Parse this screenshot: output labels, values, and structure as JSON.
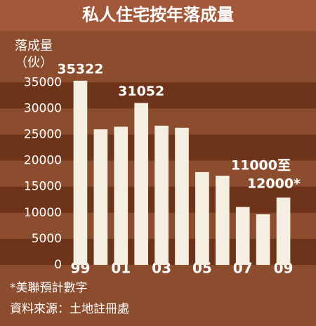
{
  "chart_data": {
    "type": "bar",
    "title": "私人住宅按年落成量",
    "y_label_lines": [
      "落成量",
      "（伙）"
    ],
    "categories": [
      "99",
      null,
      "01",
      null,
      "03",
      null,
      "05",
      null,
      "07",
      null,
      "09"
    ],
    "values": [
      35322,
      26000,
      26500,
      31052,
      26700,
      26300,
      17800,
      17100,
      11100,
      9700,
      12900
    ],
    "labeled_points": [
      0,
      3
    ],
    "annotations": [
      "11000至",
      "12000*"
    ],
    "footnotes": [
      "*美聯預計數字",
      "資料來源：土地註冊處"
    ],
    "color": "#f5efe2",
    "ylim": [
      0,
      38000
    ],
    "yticks": [
      0,
      5000,
      10000,
      15000,
      20000,
      25000,
      30000,
      35000
    ],
    "grid": true
  }
}
